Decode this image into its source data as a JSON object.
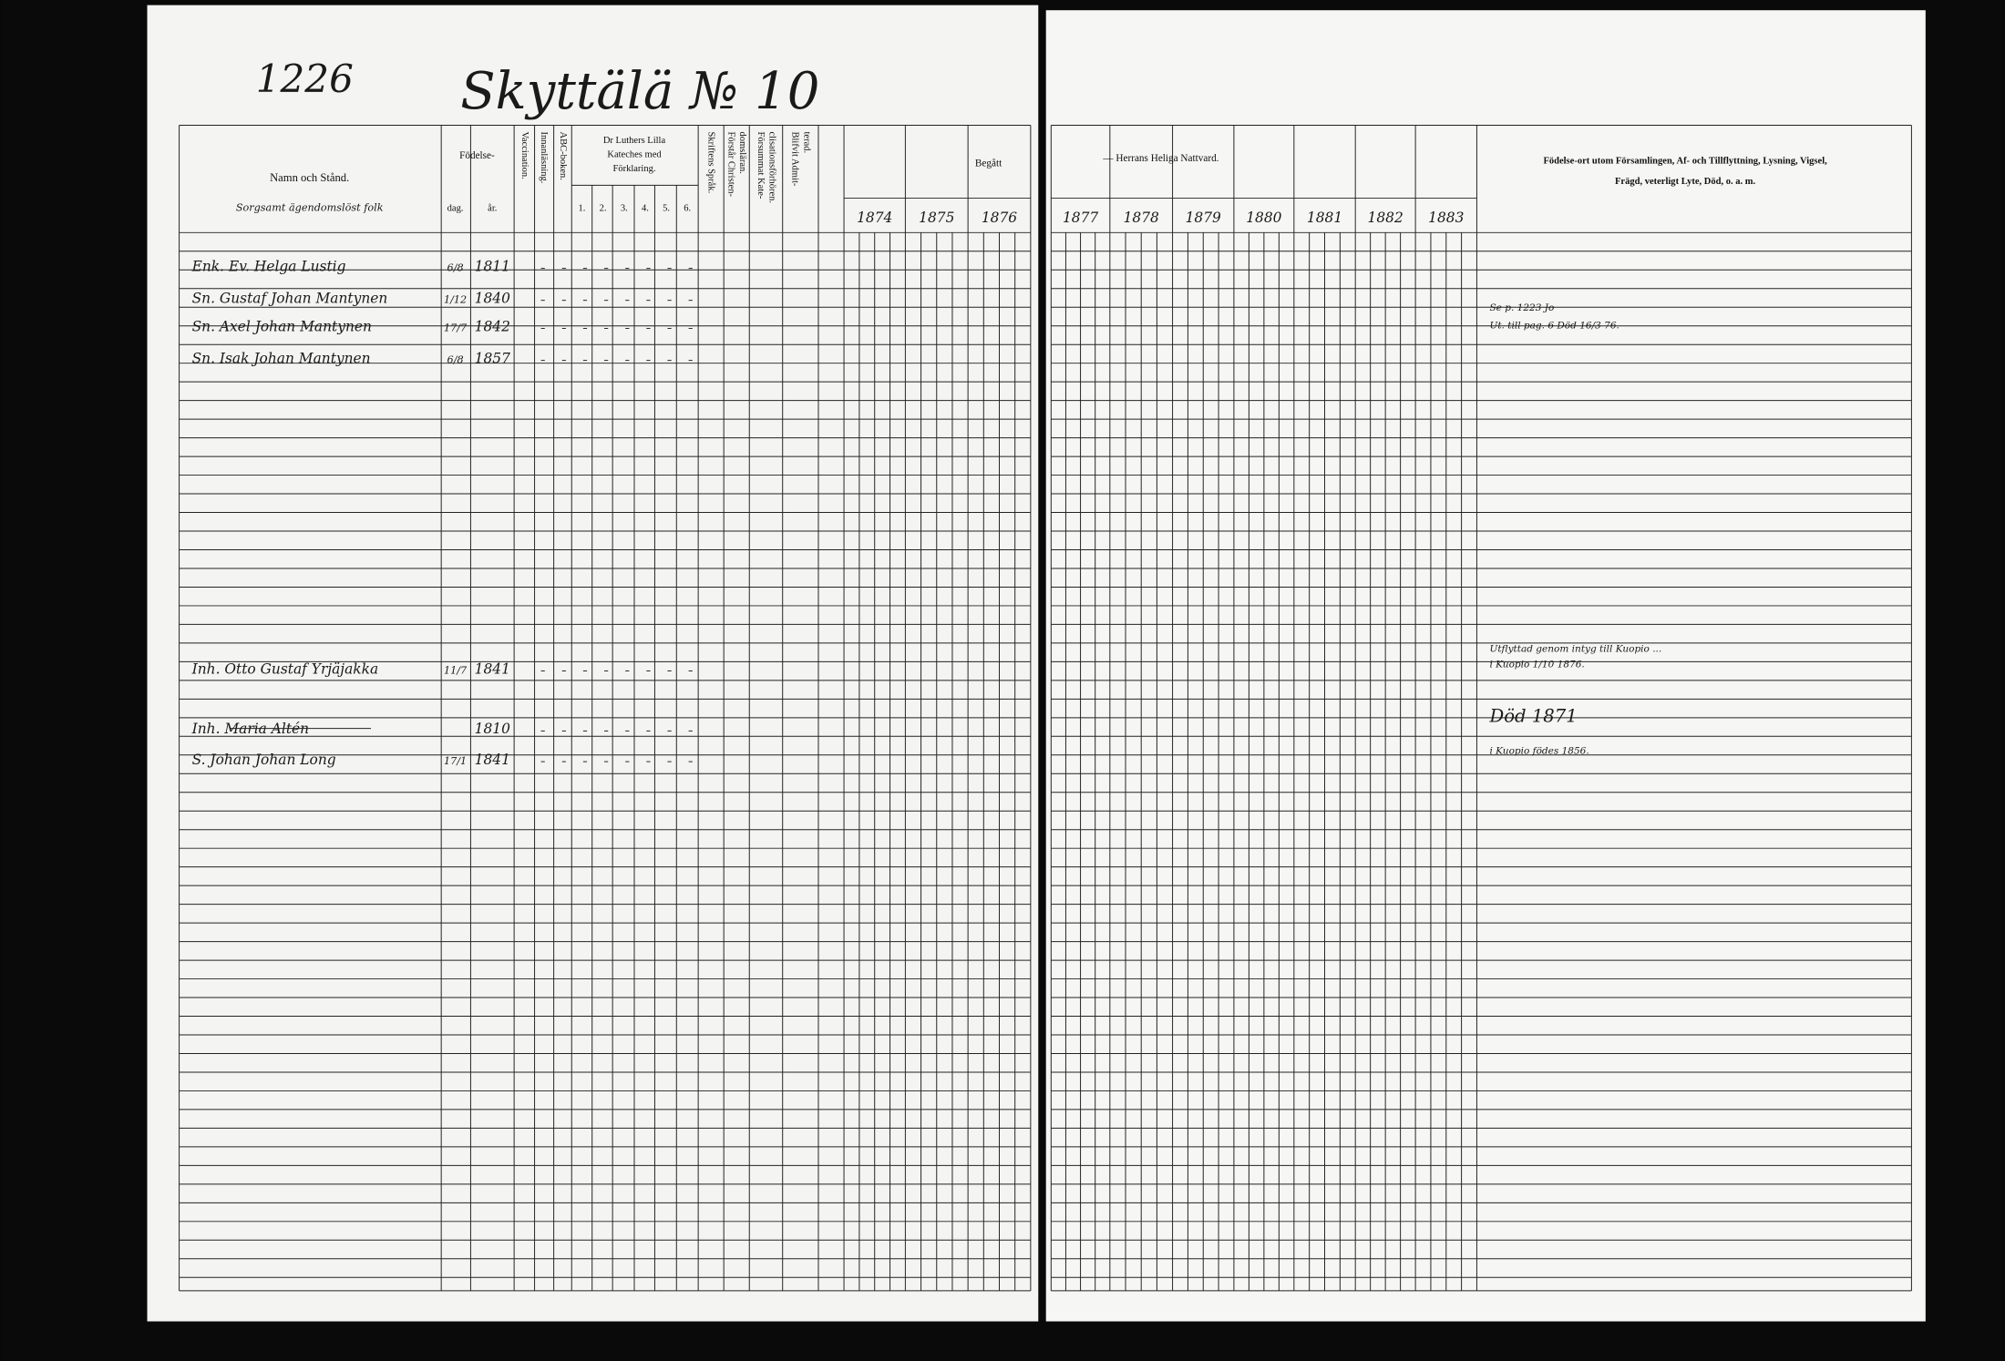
{
  "header": {
    "page_number": "1226",
    "title": "Skyttälä № 10"
  },
  "columns": {
    "name": "Namn och Stånd.",
    "name_note": "Sorgsamt ägendomslöst folk",
    "birth": "Födelse-",
    "birth_day": "dag.",
    "birth_year": "år.",
    "vaccination": [
      "Vaccination."
    ],
    "reading": [
      "Innanläsning."
    ],
    "abc": [
      "ABC-boken."
    ],
    "catechism": [
      "Dr Luthers Lilla",
      "Kateches med",
      "Förklaring."
    ],
    "catechism_parts": [
      "1.",
      "2.",
      "3.",
      "4.",
      "5.",
      "6."
    ],
    "scripture": [
      "Skriftens Språk."
    ],
    "understands": [
      "Förstår Christen-",
      "domsläran."
    ],
    "missed": [
      "Försummat Kate-",
      "clisationsförhören."
    ],
    "admitted": [
      "Blifvit Admit-",
      "terad."
    ],
    "communion_left": "Begått",
    "communion_right": "— Herrans Heliga Nattvard.",
    "remarks": [
      "Födelse-ort utom Församlingen, Af- och Tillflyttning, Lysning, Vigsel,",
      "Frägd, veterligt Lyte, Död, o. a. m."
    ]
  },
  "years": [
    "1874",
    "1875",
    "1876",
    "1877",
    "1878",
    "1879",
    "1880",
    "1881",
    "1882",
    "1883"
  ],
  "rows": [
    {
      "name": "Enk. Ev. Helga Lustig",
      "day": "6/8",
      "year": "1811"
    },
    {
      "name": "Sn. Gustaf Johan Mantynen",
      "day": "1/12",
      "year": "1840"
    },
    {
      "name": "Sn. Axel Johan Mantynen",
      "day": "17/7",
      "year": "1842"
    },
    {
      "name": "Sn. Isak Johan Mantynen",
      "day": "6/8",
      "year": "1857"
    },
    {
      "name": "Inh. Otto Gustaf Yrjäjakka",
      "day": "11/7",
      "year": "1841"
    },
    {
      "name": "Inh. Maria Altén",
      "day": "",
      "year": "1810"
    },
    {
      "name": "S. Johan Johan Long",
      "day": "17/1",
      "year": "1841"
    }
  ],
  "remarks": [
    "Se p. 1223 Jo",
    "Ut. till pag. 6 Död 16/3 76.",
    "Utflyttad genom intyg till Kuopio ...",
    "i Kuopio 1/10 1876.",
    "Död 1871",
    "i Kuopio födes 1856."
  ]
}
